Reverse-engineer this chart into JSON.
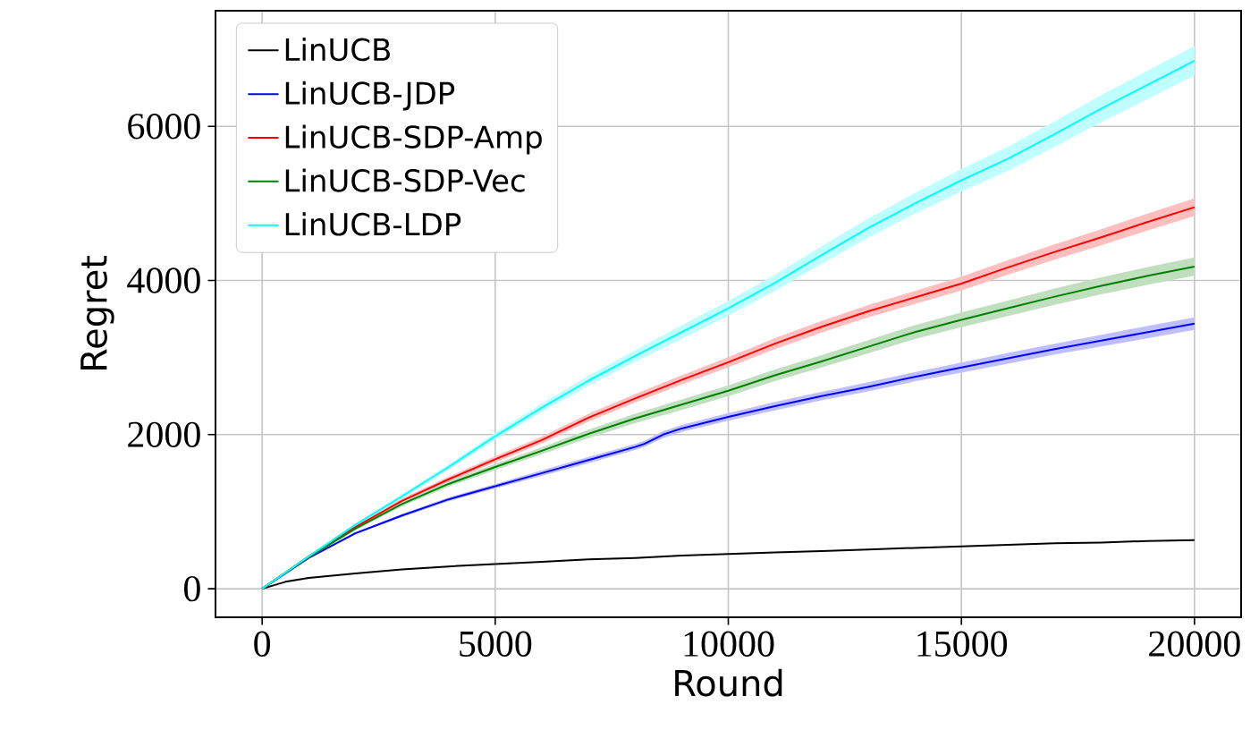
{
  "chart_data": {
    "type": "line",
    "xlabel": "Round",
    "ylabel": "Regret",
    "xlim": [
      -1000,
      21000
    ],
    "ylim": [
      -370,
      7500
    ],
    "xticks": [
      0,
      5000,
      10000,
      15000,
      20000
    ],
    "yticks": [
      0,
      2000,
      4000,
      6000
    ],
    "grid": true,
    "legend": "top left",
    "marker": "none",
    "line_style": "solid",
    "series": [
      {
        "name": "LinUCB",
        "color": "#000000",
        "x": [
          0,
          500,
          1000,
          2000,
          3000,
          4000,
          5000,
          6000,
          7000,
          8000,
          9000,
          10000,
          11000,
          12000,
          13000,
          14000,
          15000,
          16000,
          17000,
          18000,
          19000,
          20000
        ],
        "values": [
          0,
          90,
          140,
          200,
          250,
          290,
          320,
          350,
          380,
          400,
          430,
          450,
          470,
          490,
          510,
          530,
          550,
          570,
          590,
          600,
          620,
          630
        ]
      },
      {
        "name": "LinUCB-JDP",
        "color": "#0000ff",
        "x": [
          0,
          1000,
          2000,
          3000,
          4000,
          5000,
          6000,
          7000,
          8000,
          8200,
          8600,
          9000,
          10000,
          11000,
          12000,
          13000,
          14000,
          15000,
          16000,
          17000,
          18000,
          19000,
          20000
        ],
        "values": [
          0,
          400,
          720,
          950,
          1160,
          1330,
          1500,
          1670,
          1840,
          1880,
          2000,
          2080,
          2230,
          2370,
          2500,
          2620,
          2750,
          2870,
          2990,
          3110,
          3220,
          3330,
          3440
        ],
        "lower": [
          0,
          390,
          705,
          930,
          1135,
          1300,
          1465,
          1630,
          1800,
          1840,
          1955,
          2035,
          2180,
          2315,
          2445,
          2560,
          2690,
          2805,
          2920,
          3040,
          3145,
          3250,
          3360
        ],
        "upper": [
          0,
          410,
          735,
          970,
          1185,
          1360,
          1535,
          1710,
          1880,
          1920,
          2045,
          2125,
          2280,
          2425,
          2555,
          2680,
          2810,
          2935,
          3060,
          3180,
          3295,
          3410,
          3520
        ]
      },
      {
        "name": "LinUCB-SDP-Amp",
        "color": "#ff0000",
        "x": [
          0,
          1000,
          2000,
          3000,
          4000,
          5000,
          6000,
          7000,
          8000,
          9000,
          10000,
          11000,
          12000,
          13000,
          14000,
          15000,
          16000,
          17000,
          18000,
          19000,
          20000
        ],
        "values": [
          0,
          420,
          800,
          1140,
          1420,
          1680,
          1930,
          2220,
          2470,
          2710,
          2940,
          3180,
          3400,
          3600,
          3780,
          3960,
          4170,
          4370,
          4560,
          4760,
          4950
        ],
        "lower": [
          0,
          410,
          780,
          1110,
          1385,
          1640,
          1885,
          2170,
          2415,
          2650,
          2875,
          3110,
          3325,
          3520,
          3695,
          3870,
          4075,
          4270,
          4455,
          4650,
          4835
        ],
        "upper": [
          0,
          430,
          820,
          1170,
          1455,
          1720,
          1975,
          2270,
          2525,
          2770,
          3005,
          3250,
          3475,
          3680,
          3865,
          4050,
          4265,
          4470,
          4665,
          4870,
          5065
        ]
      },
      {
        "name": "LinUCB-SDP-Vec",
        "color": "#008000",
        "x": [
          0,
          1000,
          2000,
          3000,
          4000,
          5000,
          6000,
          7000,
          8000,
          9000,
          10000,
          11000,
          12000,
          13000,
          14000,
          15000,
          16000,
          17000,
          18000,
          19000,
          20000
        ],
        "values": [
          0,
          410,
          780,
          1100,
          1360,
          1580,
          1790,
          2010,
          2210,
          2390,
          2570,
          2770,
          2950,
          3140,
          3330,
          3490,
          3640,
          3790,
          3930,
          4060,
          4180
        ],
        "lower": [
          0,
          400,
          760,
          1070,
          1325,
          1540,
          1745,
          1955,
          2150,
          2320,
          2500,
          2695,
          2870,
          3055,
          3240,
          3395,
          3540,
          3685,
          3820,
          3945,
          4060
        ],
        "upper": [
          0,
          420,
          800,
          1130,
          1395,
          1620,
          1835,
          2065,
          2270,
          2455,
          2640,
          2845,
          3030,
          3225,
          3420,
          3585,
          3740,
          3895,
          4040,
          4175,
          4300
        ]
      },
      {
        "name": "LinUCB-LDP",
        "color": "#00ffff",
        "x": [
          0,
          1000,
          2000,
          3000,
          4000,
          5000,
          6000,
          7000,
          8000,
          9000,
          10000,
          11000,
          12000,
          13000,
          14000,
          15000,
          16000,
          17000,
          18000,
          19000,
          20000
        ],
        "values": [
          0,
          420,
          830,
          1200,
          1580,
          1980,
          2350,
          2700,
          3020,
          3330,
          3640,
          3970,
          4330,
          4680,
          5000,
          5300,
          5580,
          5900,
          6230,
          6540,
          6850
        ],
        "lower": [
          0,
          410,
          810,
          1170,
          1545,
          1935,
          2295,
          2635,
          2945,
          3245,
          3545,
          3865,
          4215,
          4555,
          4865,
          5155,
          5425,
          5735,
          6055,
          6355,
          6660
        ],
        "upper": [
          0,
          430,
          850,
          1230,
          1615,
          2025,
          2405,
          2765,
          3095,
          3420,
          3735,
          4075,
          4445,
          4805,
          5135,
          5445,
          5735,
          6065,
          6405,
          6725,
          7040
        ]
      }
    ]
  }
}
